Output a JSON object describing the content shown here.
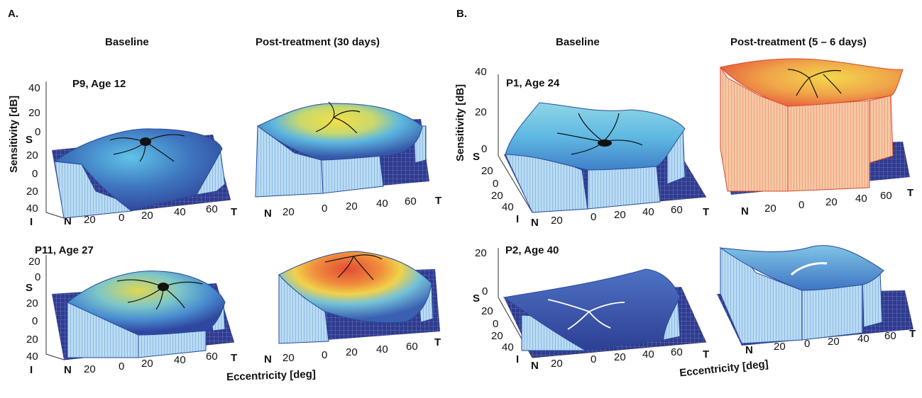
{
  "panels": [
    {
      "letter": "A.",
      "columns": [
        "Baseline",
        "Post-treatment (30 days)"
      ],
      "rows": [
        {
          "subject": "P9, Age 12",
          "z_ticks": [
            "40",
            "20",
            "0"
          ]
        },
        {
          "subject": "P11, Age 27",
          "z_ticks": [
            "20",
            "0"
          ]
        }
      ],
      "ylabel": "Sensitivity [dB]",
      "xlabel": "Eccentricity [deg]",
      "y_ticks": [
        "S",
        "20",
        "0",
        "20",
        "40",
        "I"
      ],
      "x_ticks": [
        "N",
        "20",
        "0",
        "20",
        "40",
        "60",
        "T"
      ]
    },
    {
      "letter": "B.",
      "columns": [
        "Baseline",
        "Post-treatment (5 – 6 days)"
      ],
      "rows": [
        {
          "subject": "P1, Age 24",
          "z_ticks": [
            "40",
            "20",
            "0"
          ]
        },
        {
          "subject": "P2, Age 40",
          "z_ticks": [
            "20",
            "0"
          ]
        }
      ],
      "ylabel": "Sensitivity [dB]",
      "xlabel": "Eccentricity [deg]",
      "y_ticks": [
        "S",
        "20",
        "0",
        "20",
        "40",
        "I"
      ],
      "x_ticks": [
        "N",
        "20",
        "0",
        "20",
        "40",
        "60",
        "T"
      ]
    }
  ],
  "colors": {
    "floor": "#2f3b8f",
    "low": "#3d5fb0",
    "mid": "#4aa8d8",
    "high": "#f2d54a",
    "peak": "#e8553a",
    "wall": "#9ec9ea",
    "vessels": "#1a1a1a"
  }
}
